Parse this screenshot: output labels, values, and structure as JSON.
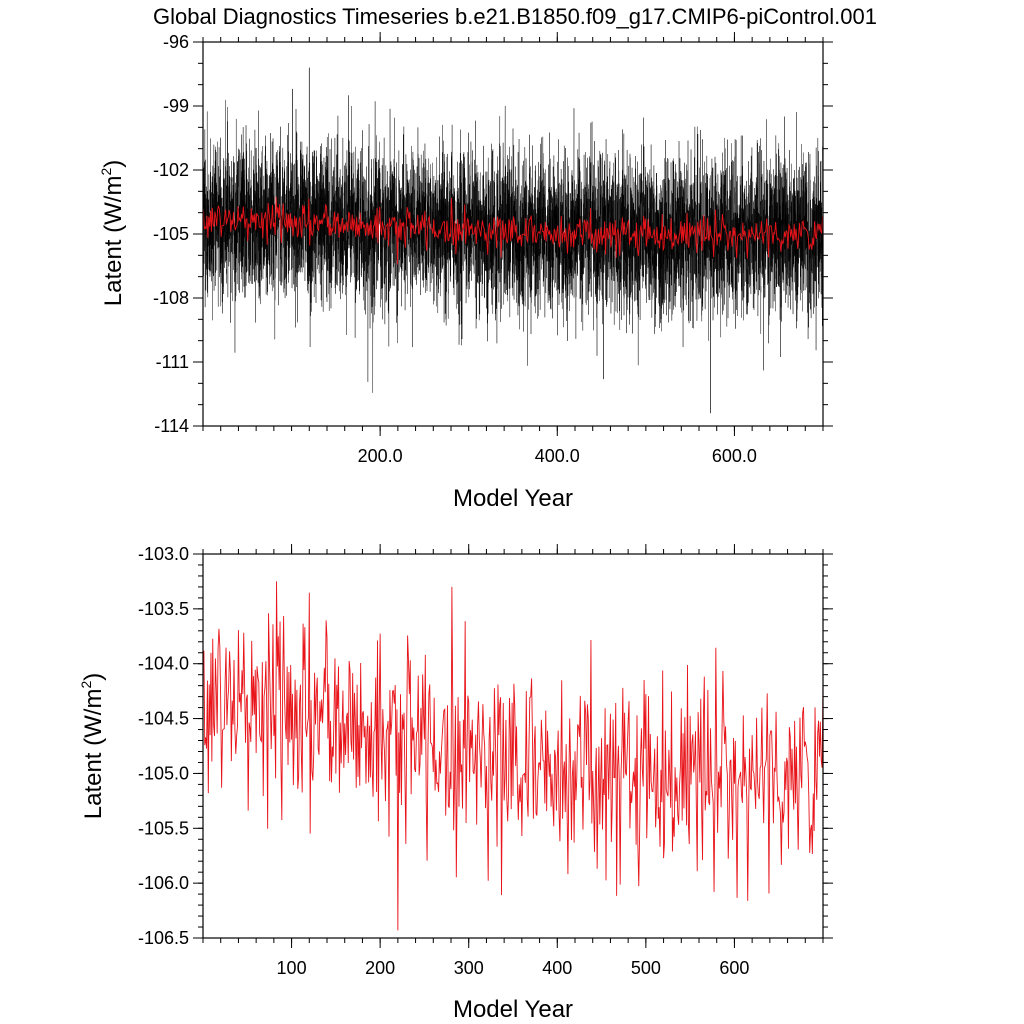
{
  "title": "Global Diagnostics Timeseries b.e21.B1850.f09_g17.CMIP6-piControl.001",
  "colors": {
    "monthly_series": "#000000",
    "annual_series": "#e8141a",
    "frame": "#000000",
    "background": "#ffffff"
  },
  "chart_data": [
    {
      "type": "line",
      "xlabel": "Model Year",
      "ylabel": "Latent (W/m",
      "ylabel_superscript": "2",
      "ylabel_close": ")",
      "xlim": [
        0,
        700
      ],
      "ylim": [
        -114,
        -96
      ],
      "x_ticks": [
        200,
        400,
        600
      ],
      "x_tick_labels": [
        "200.0",
        "400.0",
        "600.0"
      ],
      "y_ticks": [
        -96,
        -99,
        -102,
        -105,
        -108,
        -111,
        -114
      ],
      "y_tick_labels": [
        "-96",
        "-99",
        "-102",
        "-105",
        "-108",
        "-111",
        "-114"
      ],
      "grid": false,
      "series": [
        {
          "role": "monthly",
          "color": "#000000",
          "points": 8400,
          "mean": -104.9,
          "spread_sd": 1.9,
          "max": -97.2,
          "min": -113.4
        },
        {
          "role": "annual-mean",
          "color": "#e8141a",
          "mean_start": -104.3,
          "mean_end": -105.0,
          "spread_sd": 0.45
        }
      ]
    },
    {
      "type": "line",
      "xlabel": "Model Year",
      "ylabel": "Latent (W/m",
      "ylabel_superscript": "2",
      "ylabel_close": ")",
      "xlim": [
        0,
        700
      ],
      "ylim": [
        -106.5,
        -103.0
      ],
      "x_ticks": [
        100,
        200,
        300,
        400,
        500,
        600
      ],
      "x_tick_labels": [
        "100",
        "200",
        "300",
        "400",
        "500",
        "600"
      ],
      "y_ticks": [
        -103.0,
        -103.5,
        -104.0,
        -104.5,
        -105.0,
        -105.5,
        -106.0,
        -106.5
      ],
      "y_tick_labels": [
        "-103.0",
        "-103.5",
        "-104.0",
        "-104.5",
        "-105.0",
        "-105.5",
        "-106.0",
        "-106.5"
      ],
      "grid": false,
      "series": [
        {
          "role": "annual-mean",
          "color": "#e8141a",
          "start_year": 1,
          "end_year": 700,
          "mean_start": -104.3,
          "mean_end": -105.0,
          "spread_sd": 0.45,
          "max": -103.25,
          "max_year": 83,
          "min": -106.43,
          "min_year": 220
        }
      ]
    }
  ]
}
